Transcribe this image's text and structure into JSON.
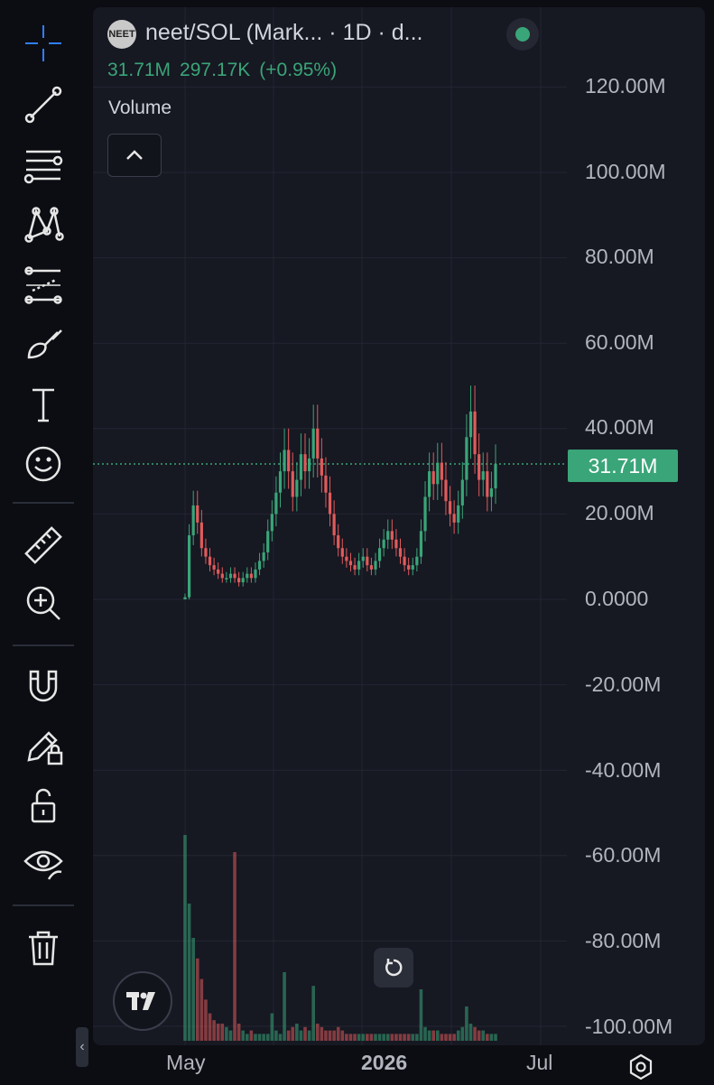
{
  "legend": {
    "title": "neet/SOL (Mark...   · 1D · d...",
    "logo_text": "NEET",
    "value": "31.71M",
    "change": "297.17K",
    "change_pct": "(+0.95%)"
  },
  "volume_label": "Volume",
  "price_label": "31.71M",
  "colors": {
    "up": "#3aa578",
    "down": "#e05b5b",
    "accent": "#2962ff",
    "pane": "#161822"
  },
  "toolbar": {
    "items": [
      "crosshair-icon",
      "trend-line-icon",
      "fib-retracement-icon",
      "xabcd-pattern-icon",
      "forecast-icon",
      "brush-icon",
      "text-icon",
      "emoji-icon",
      "ruler-icon",
      "zoom-in-icon",
      "magnet-icon",
      "lock-drawing-icon",
      "lock-icon",
      "eye-icon",
      "trash-icon"
    ]
  },
  "chart_data": {
    "type": "candlestick",
    "y_ticks": [
      "120.00M",
      "100.00M",
      "80.00M",
      "60.00M",
      "40.00M",
      "20.00M",
      "0.0000",
      "-20.00M",
      "-40.00M",
      "-60.00M",
      "-80.00M",
      "-100.00M"
    ],
    "ylim": [
      -100000000,
      120000000
    ],
    "x_ticks": [
      "May",
      "2026",
      "Jul"
    ],
    "last_value": 31710000,
    "close_series": [
      0.5,
      15,
      22,
      18,
      12,
      10,
      8,
      7,
      6,
      5,
      5,
      6,
      5,
      4,
      5,
      6,
      5,
      7,
      9,
      11,
      16,
      20,
      25,
      30,
      35,
      30,
      24,
      28,
      34,
      30,
      33,
      40,
      33,
      29,
      25,
      20,
      15,
      12,
      10,
      9,
      8,
      7,
      9,
      10,
      8,
      7,
      9,
      12,
      14,
      16,
      14,
      12,
      10,
      8,
      7,
      8,
      10,
      16,
      24,
      30,
      27,
      32,
      28,
      23,
      20,
      18,
      22,
      28,
      38,
      44,
      34,
      28,
      30,
      24,
      26,
      31.71
    ],
    "volume_series": [
      60,
      40,
      30,
      24,
      18,
      12,
      8,
      6,
      5,
      5,
      4,
      3,
      55,
      5,
      3,
      2,
      3,
      2,
      2,
      2,
      2,
      8,
      3,
      2,
      20,
      3,
      4,
      5,
      3,
      4,
      3,
      16,
      5,
      4,
      3,
      3,
      3,
      4,
      3,
      2,
      2,
      2,
      2,
      2,
      2,
      2,
      2,
      2,
      2,
      2,
      2,
      2,
      2,
      2,
      2,
      2,
      2,
      15,
      4,
      3,
      3,
      3,
      2,
      2,
      2,
      2,
      3,
      4,
      10,
      5,
      4,
      3,
      3,
      2,
      2,
      2
    ]
  }
}
